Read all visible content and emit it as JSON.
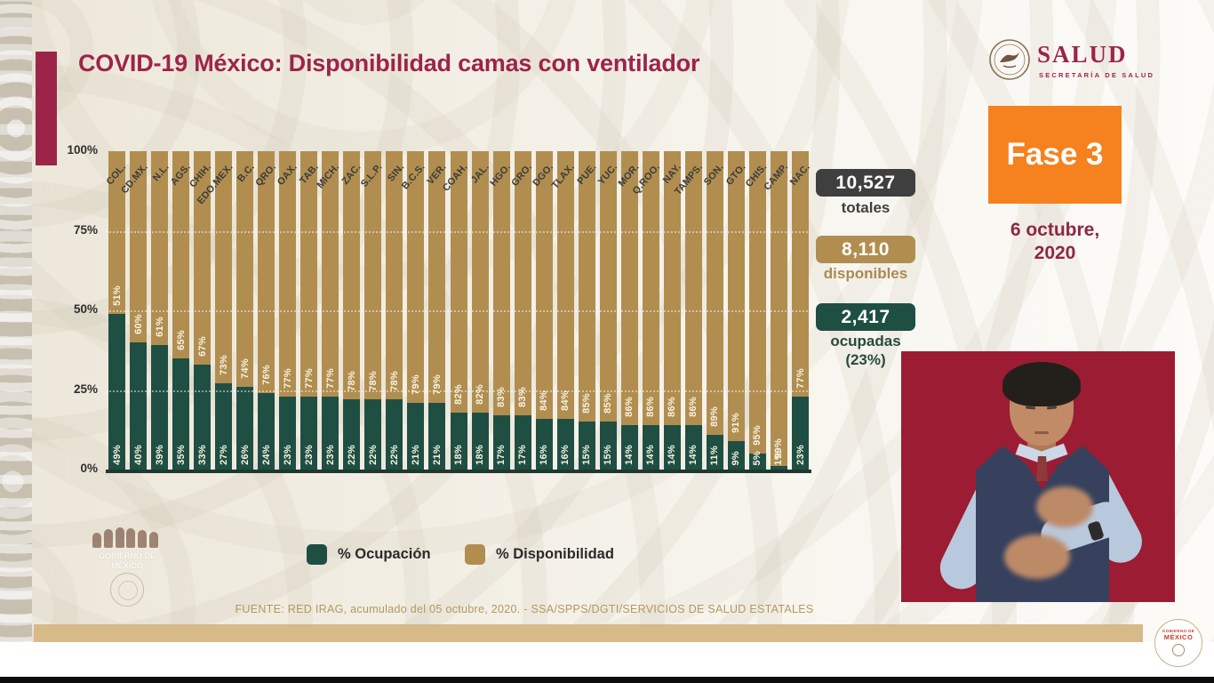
{
  "title": "COVID-19 México: Disponibilidad camas con ventilador",
  "header_logo": {
    "name": "SALUD",
    "subtitle": "SECRETARÍA DE SALUD"
  },
  "phase_badge": "Fase 3",
  "date": {
    "line1": "6 octubre,",
    "line2": "2020"
  },
  "stats": {
    "totales": {
      "value": "10,527",
      "label": "totales"
    },
    "disponibles": {
      "value": "8,110",
      "label": "disponibles"
    },
    "ocupadas": {
      "value": "2,417",
      "label": "ocupadas",
      "sublabel": "(23%)"
    }
  },
  "chart_data": {
    "type": "bar",
    "stacked": true,
    "categories": [
      "COL.",
      "CD.MX.",
      "N.L.",
      "AGS.",
      "CHIH.",
      "EDO.MEX.",
      "B.C.",
      "QRO.",
      "OAX.",
      "TAB.",
      "MICH.",
      "ZAC.",
      "S.L.P.",
      "SIN.",
      "B.C.S.",
      "VER.",
      "COAH.",
      "JAL.",
      "HGO.",
      "GRO.",
      "DGO.",
      "TLAX.",
      "PUE.",
      "YUC.",
      "MOR.",
      "Q.ROO.",
      "NAY.",
      "TAMPS.",
      "SON.",
      "GTO.",
      "CHIS.",
      "CAMP.",
      "NAC."
    ],
    "series": [
      {
        "name": "% Ocupación",
        "color": "#1f4f43",
        "values": [
          49,
          40,
          39,
          35,
          33,
          27,
          26,
          24,
          23,
          23,
          23,
          22,
          22,
          22,
          21,
          21,
          18,
          18,
          17,
          17,
          16,
          16,
          15,
          15,
          14,
          14,
          14,
          14,
          11,
          9,
          5,
          1,
          23
        ]
      },
      {
        "name": "% Disponibilidad",
        "color": "#b18e4f",
        "values": [
          51,
          60,
          61,
          65,
          67,
          73,
          74,
          76,
          77,
          77,
          77,
          78,
          78,
          78,
          79,
          79,
          82,
          82,
          83,
          83,
          84,
          84,
          85,
          85,
          86,
          86,
          86,
          86,
          89,
          91,
          95,
          99,
          77
        ]
      }
    ],
    "y_ticks": [
      "100%",
      "75%",
      "50%",
      "25%",
      "0%"
    ],
    "ylim": [
      0,
      100
    ],
    "legend_position": "bottom",
    "grid": "dotted horizontal at 25/50/75"
  },
  "footer": {
    "source": "FUENTE: RED IRAG, acumulado del 05 octubre, 2020. -  SSA/SPPS/DGTI/SERVICIOS DE SALUD ESTATALES"
  },
  "watermark": {
    "line1": "GOBIERNO DE",
    "line2": "MÉXICO"
  },
  "bottom_badge": {
    "line1": "GOBIERNO DE",
    "line2": "MÉXICO"
  },
  "colors": {
    "accent_maroon": "#9d2449",
    "phase_orange": "#f6811f",
    "bar_green": "#1f4f43",
    "bar_gold": "#b18e4f",
    "badge_dark": "#3f3f3f",
    "interpreter_bg": "#9c1c33",
    "footer_gold": "#d6ba88"
  }
}
